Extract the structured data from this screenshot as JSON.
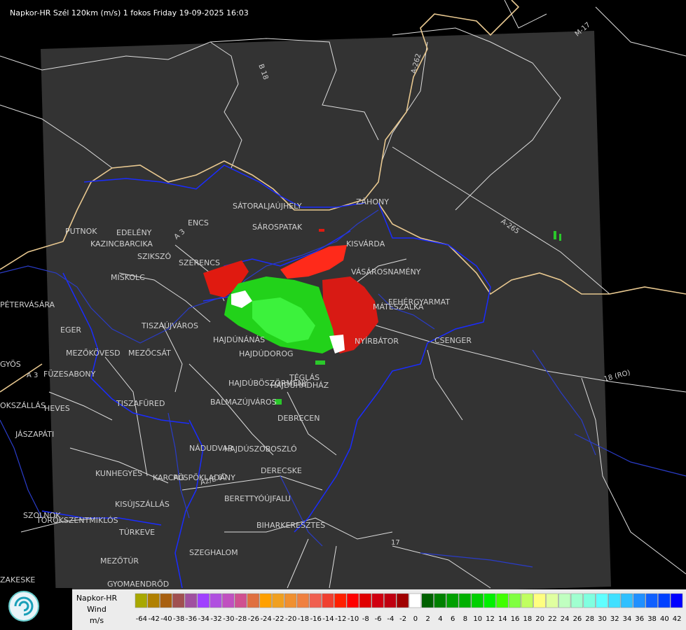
{
  "header": {
    "title": "Napkor-HR Szél 120km (m/s) 1 fokos Friday 19-09-2025 16:03"
  },
  "map": {
    "places": [
      "SÁTORALJAÚJHELY",
      "ZÁHONY",
      "SÁROSPATAK",
      "PUTNOK",
      "EDELÉNY",
      "ENCS",
      "KAZINCBARCIKA",
      "KISVÁRDA",
      "SZIKSZÓ",
      "SZERENCS",
      "VÁSÁROSNAMÉNY",
      "MISKOLC",
      "FEHÉRGYARMAT",
      "MÁTÉSZALKA",
      "PÉTERVÁSÁRA",
      "TISZAÚJVÁROS",
      "EGER",
      "HAJDÚNÁNÁS",
      "NYÍRBÁTOR",
      "CSENGER",
      "MEZŐKÖVESD",
      "MEZŐCSÁT",
      "HAJDÚDOROG",
      "GYÖS",
      "FÜZESABONY",
      "HAJDÚBÖSZÖRMÉNY",
      "HAJDÚHADHÁZ",
      "TÉGLÁS",
      "BALMAZÚJVÁROS",
      "TISZAFÜRED",
      "HEVES",
      "OKSZÁLLÁS",
      "DEBRECEN",
      "JÁSZAPÁTI",
      "NÁDUDVAR",
      "HAJDÚSZOBOSZLÓ",
      "KUNHEGYES",
      "KARCAG",
      "PÜSPÖKLADÁNY",
      "DERECSKE",
      "BERETTYÓÚJFALU",
      "KISÚJSZÁLLÁS",
      "SZOLNOK",
      "TÖRÖKSZENTMIKLÓS",
      "BIHARKERESZTES",
      "TÚRKEVE",
      "SZEGHALOM",
      "MEZŐTÚR",
      "GYOMAENDRŐD",
      "ZAKESKE"
    ],
    "roads": [
      "B 18",
      "A-262",
      "M-17",
      "A-265",
      "18 (RO)",
      "17",
      "A 3",
      "A2/E 60",
      "A 3"
    ]
  },
  "legend": {
    "title": "Napkor-HR",
    "subtitle": "Wind",
    "unit": "m/s",
    "values": [
      -64,
      -42,
      -40,
      -38,
      -36,
      -34,
      -32,
      -30,
      -28,
      -26,
      -24,
      -22,
      -20,
      -18,
      -16,
      -14,
      -12,
      -10,
      -8,
      -6,
      -4,
      -2,
      0,
      2,
      4,
      6,
      8,
      10,
      12,
      14,
      16,
      18,
      20,
      22,
      24,
      26,
      28,
      30,
      32,
      34,
      36,
      38,
      40,
      42
    ],
    "colors": [
      "#a8a800",
      "#b08000",
      "#a86010",
      "#a05050",
      "#a050a0",
      "#a040ff",
      "#b050e0",
      "#c050c0",
      "#d05090",
      "#e07040",
      "#ffa000",
      "#f0a020",
      "#f09030",
      "#f08040",
      "#f06050",
      "#f04030",
      "#ff2000",
      "#ff0000",
      "#e00000",
      "#d00010",
      "#c00010",
      "#a00000",
      "#ffffff",
      "#006000",
      "#008000",
      "#00a000",
      "#00b000",
      "#00d000",
      "#00f000",
      "#40ff00",
      "#80ff40",
      "#c0ff60",
      "#ffff80",
      "#e0ffa0",
      "#c0ffc0",
      "#a0ffd0",
      "#80ffe0",
      "#60ffff",
      "#40e0ff",
      "#30c0ff",
      "#2090ff",
      "#1060ff",
      "#0040ff",
      "#0000ff"
    ]
  }
}
